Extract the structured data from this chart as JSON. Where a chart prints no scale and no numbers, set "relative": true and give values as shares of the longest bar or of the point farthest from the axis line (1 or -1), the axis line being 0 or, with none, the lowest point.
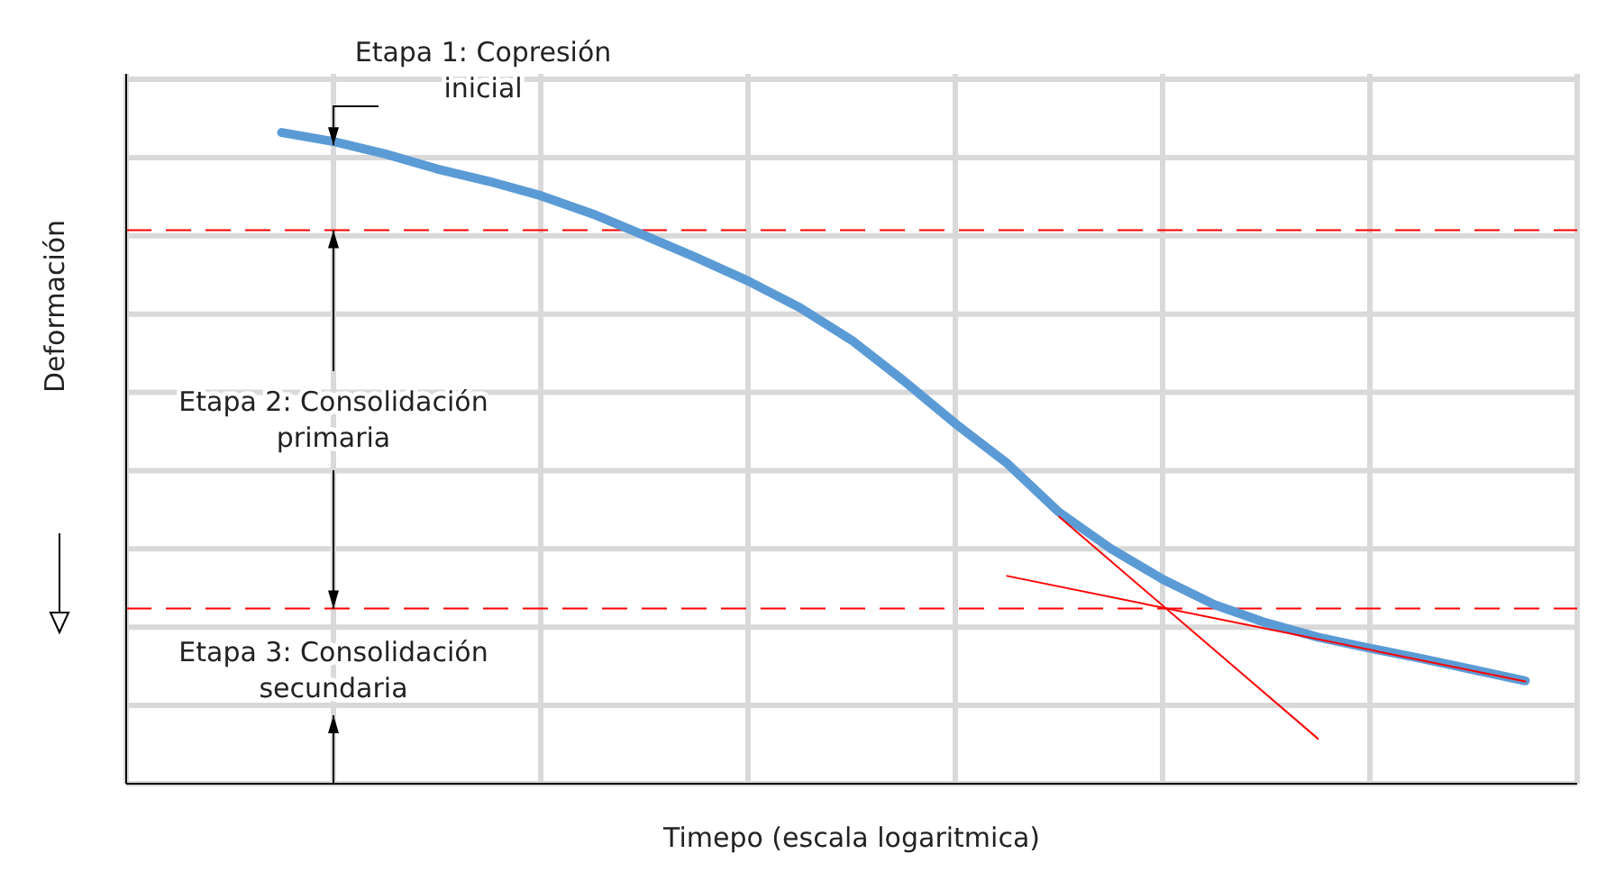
{
  "chart_data": {
    "type": "line",
    "relative": true,
    "xlabel": "Timepo (escala logaritmica)",
    "ylabel": "Deformación",
    "grid": true,
    "legend": false,
    "marker": "none",
    "line_style": "solid",
    "categories": [
      null,
      null,
      null,
      null,
      null,
      null,
      null,
      null,
      null,
      null,
      null,
      null,
      null,
      null,
      null,
      null,
      null,
      null,
      null,
      null,
      null,
      null,
      null,
      null,
      null,
      null,
      null,
      null,
      null
    ],
    "series": [
      {
        "color": "#5b9bd5",
        "values": [
          null,
          null,
          null,
          1,
          0.986,
          0.967,
          0.944,
          0.925,
          0.903,
          0.875,
          0.842,
          0.808,
          0.772,
          0.731,
          0.681,
          0.619,
          0.553,
          0.492,
          0.417,
          0.361,
          0.314,
          0.275,
          0.247,
          0.225,
          0.208,
          0.192,
          0.175,
          0.158,
          null
        ]
      },
      {
        "color": "#ff0000",
        "values": [
          null,
          null,
          null,
          null,
          null,
          null,
          null,
          null,
          null,
          null,
          null,
          null,
          null,
          null,
          null,
          null,
          null,
          null,
          0.41,
          null,
          null,
          null,
          null,
          0.069,
          null,
          null,
          null,
          null,
          null
        ]
      },
      {
        "color": "#ff0000",
        "values": [
          null,
          null,
          null,
          null,
          null,
          null,
          null,
          null,
          null,
          null,
          null,
          null,
          null,
          null,
          null,
          null,
          null,
          0.319,
          null,
          null,
          null,
          null,
          null,
          null,
          null,
          null,
          null,
          0.157,
          null
        ]
      }
    ],
    "ref_lines": [
      {
        "axis": "y",
        "value": 0.85,
        "color": "#ff0000",
        "line_style": "dashed"
      },
      {
        "axis": "y",
        "value": 0.269,
        "color": "#ff0000",
        "line_style": "dashed"
      }
    ],
    "annotations": [
      "Etapa 1:  Copresión\ninicial",
      "Etapa 2: Consolidación\nprimaria",
      "Etapa 3:  Consolidación\nsecundaria"
    ]
  }
}
